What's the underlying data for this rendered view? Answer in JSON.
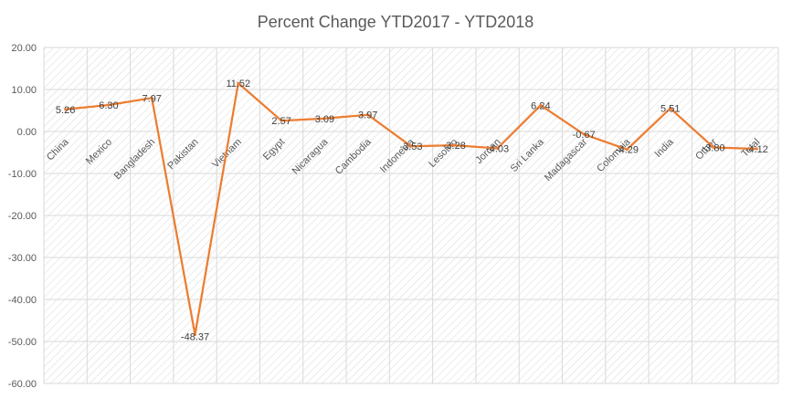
{
  "chart_data": {
    "type": "line",
    "title": "Percent Change YTD2017 - YTD2018",
    "xlabel": "",
    "ylabel": "",
    "categories": [
      "China",
      "Mexico",
      "Bangladesh",
      "Pakistan",
      "Vietnam",
      "Egypt",
      "Nicaragua",
      "Cambodia",
      "Indonesia",
      "Lesotho",
      "Jordan",
      "Sri Lanka",
      "Madagascar",
      "Colombia",
      "India",
      "Other",
      "Total"
    ],
    "series": [
      {
        "values": [
          5.26,
          6.3,
          7.97,
          -48.37,
          11.52,
          2.57,
          3.09,
          3.97,
          -3.53,
          -3.28,
          -4.03,
          6.24,
          -0.67,
          -4.29,
          5.51,
          -3.8,
          -4.12
        ],
        "labels": [
          "5.26",
          "6.30",
          "7.97",
          "-48.37",
          "11.52",
          "2.57",
          "3.09",
          "3.97",
          "-3.53",
          "-3.28",
          "-4.03",
          "6.24",
          "-0.67",
          "-4.29",
          "5.51",
          "-3.80",
          "-4.12"
        ]
      }
    ],
    "ylim": [
      -60,
      20
    ],
    "yticks": [
      "20.00",
      "10.00",
      "0.00",
      "-10.00",
      "-20.00",
      "-30.00",
      "-40.00",
      "-50.00",
      "-60.00"
    ],
    "grid": true,
    "legend": "none",
    "colors": {
      "line": "#ED7D31",
      "plot_background_hatch": "#d9d9d9",
      "text": "#595959"
    }
  }
}
